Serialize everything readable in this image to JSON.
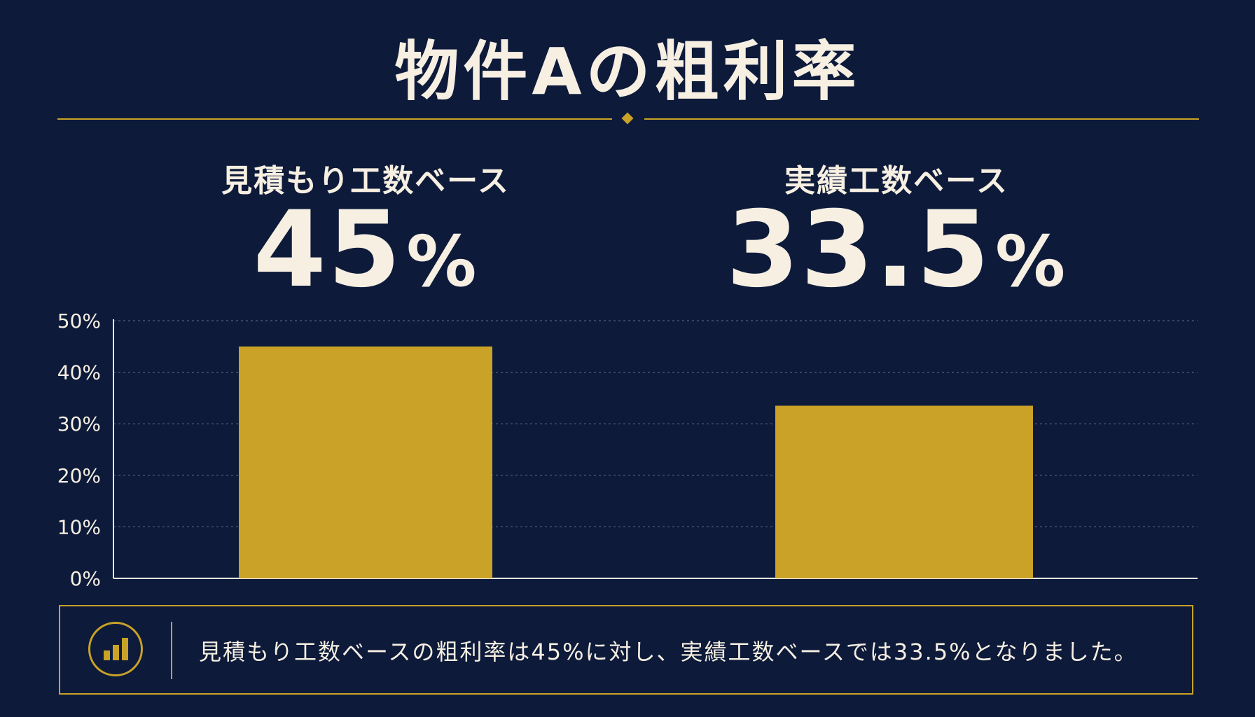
{
  "page": {
    "title": "物件Aの粗利率",
    "colors": {
      "background": "#0d1a3a",
      "accent": "#c9a227",
      "text": "#f6efe2"
    }
  },
  "metrics": [
    {
      "label": "見積もり工数ベース",
      "value": "45",
      "unit": "%"
    },
    {
      "label": "実績工数ベース",
      "value": "33.5",
      "unit": "%"
    }
  ],
  "chart_data": {
    "type": "bar",
    "categories": [
      "見積もり工数ベース",
      "実績工数ベース"
    ],
    "values": [
      45,
      33.5
    ],
    "ylim": [
      0,
      50
    ],
    "yticks": [
      "0%",
      "10%",
      "20%",
      "30%",
      "40%",
      "50%"
    ],
    "grid": true,
    "bar_color": "#c9a227"
  },
  "summary": {
    "icon": "bar-chart-icon",
    "text": "見積もり工数ベースの粗利率は45%に対し、実績工数ベースでは33.5%となりました。"
  }
}
